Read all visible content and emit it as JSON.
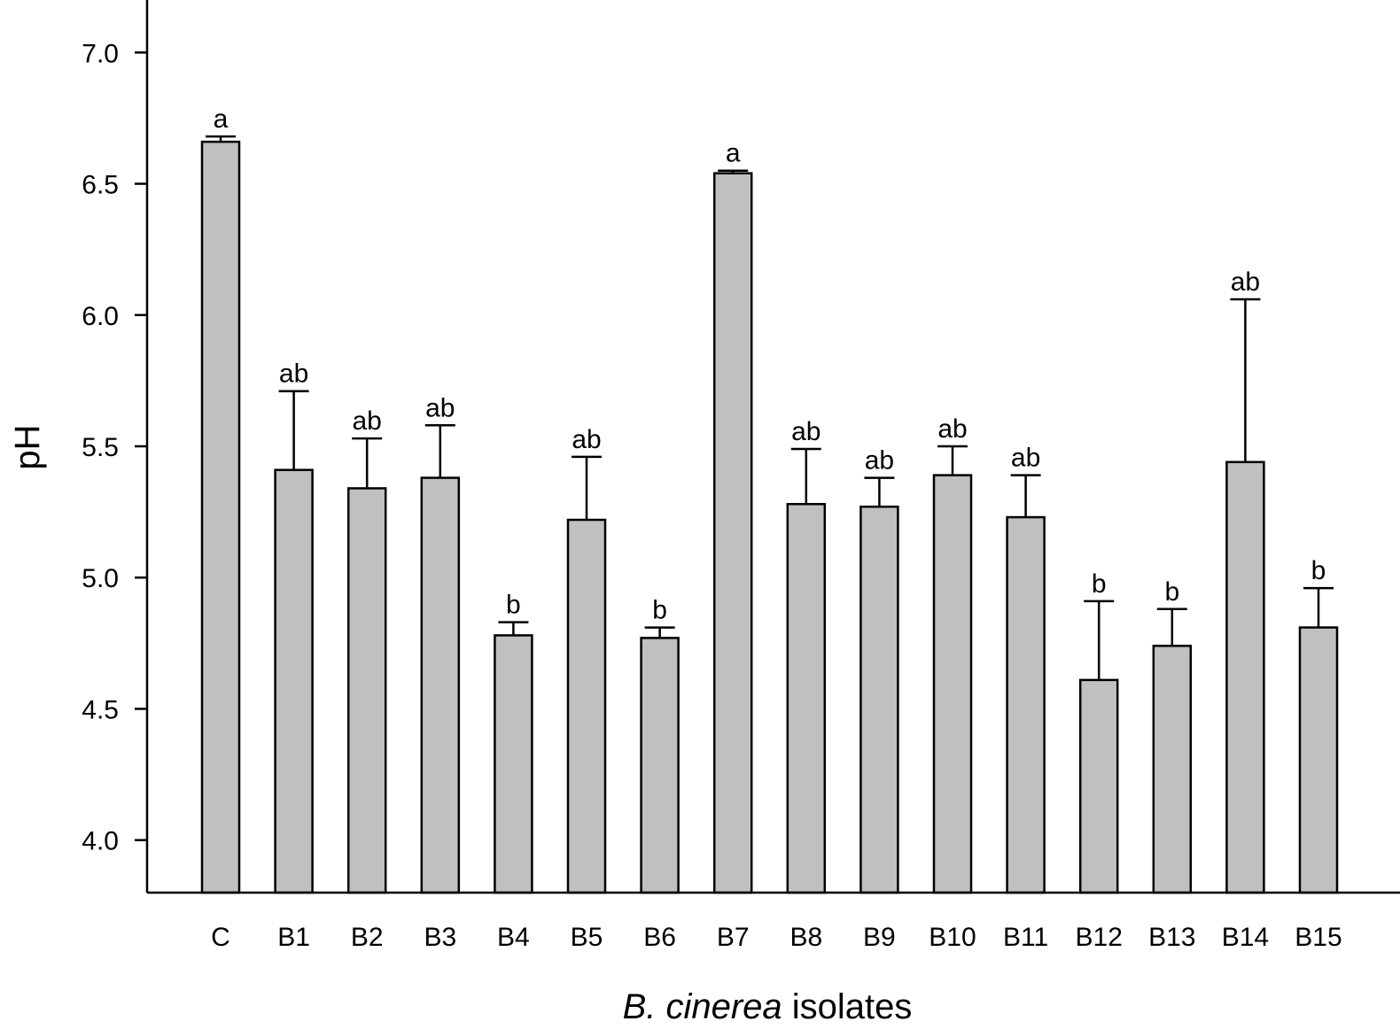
{
  "chart_data": {
    "type": "bar",
    "title": "",
    "ylabel": "pH",
    "xlabel": {
      "italic": "B. cinerea",
      "rest": " isolates"
    },
    "ylim": [
      3.8,
      7.2
    ],
    "yticks": [
      4.0,
      4.5,
      5.0,
      5.5,
      6.0,
      6.5,
      7.0
    ],
    "ytick_labels": [
      "4.0",
      "4.5",
      "5.0",
      "5.5",
      "6.0",
      "6.5",
      "7.0"
    ],
    "categories": [
      "C",
      "B1",
      "B2",
      "B3",
      "B4",
      "B5",
      "B6",
      "B7",
      "B8",
      "B9",
      "B10",
      "B11",
      "B12",
      "B13",
      "B14",
      "B15"
    ],
    "values": [
      6.66,
      5.41,
      5.34,
      5.38,
      4.78,
      5.22,
      4.77,
      6.54,
      5.28,
      5.27,
      5.39,
      5.23,
      4.61,
      4.74,
      5.44,
      4.81
    ],
    "errors": [
      0.02,
      0.3,
      0.19,
      0.2,
      0.05,
      0.24,
      0.04,
      0.01,
      0.21,
      0.11,
      0.11,
      0.16,
      0.3,
      0.14,
      0.62,
      0.15
    ],
    "significance": [
      "a",
      "ab",
      "ab",
      "ab",
      "b",
      "ab",
      "b",
      "a",
      "ab",
      "ab",
      "ab",
      "ab",
      "b",
      "b",
      "ab",
      "b"
    ],
    "bar_color": "#c0c0c0",
    "edge_color": "#000000",
    "grid": false
  }
}
